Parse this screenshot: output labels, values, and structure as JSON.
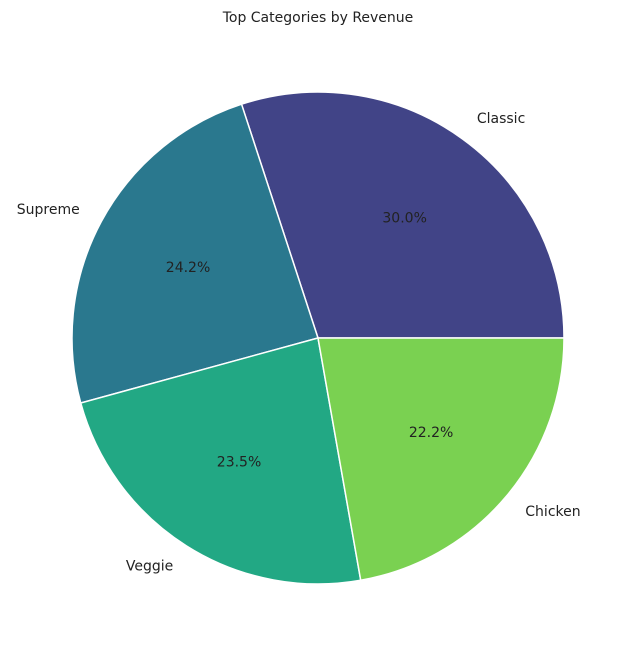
{
  "chart_data": {
    "type": "pie",
    "title": "Top Categories by Revenue",
    "categories": [
      "Classic",
      "Supreme",
      "Veggie",
      "Chicken"
    ],
    "values": [
      30.0,
      24.2,
      23.5,
      22.2
    ],
    "percent_labels": [
      "30.0%",
      "24.2%",
      "23.5%",
      "22.2%"
    ],
    "colors": [
      "#414487",
      "#2a788e",
      "#22a884",
      "#7ad151"
    ],
    "start_angle_deg": 0,
    "direction": "counterclockwise"
  }
}
